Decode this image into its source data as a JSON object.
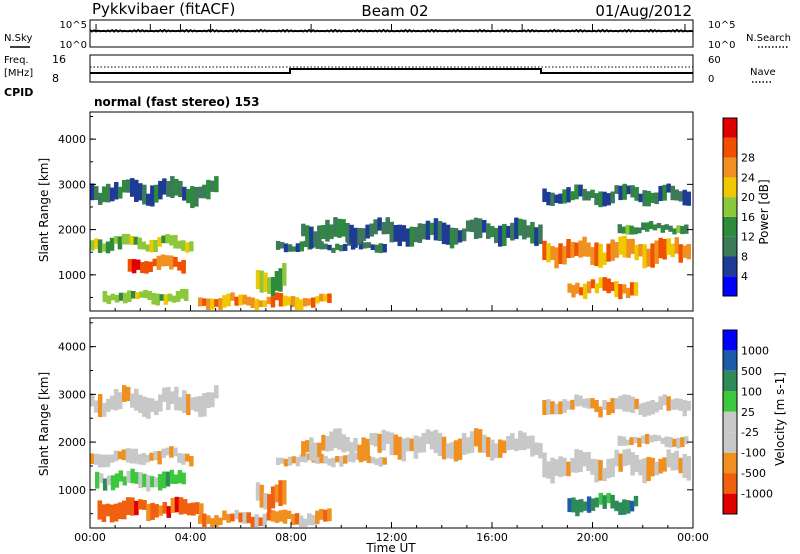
{
  "header": {
    "station": "Pykkvibaer (fitACF)",
    "beam": "Beam 02",
    "date": "01/Aug/2012"
  },
  "side_labels": {
    "nsky": "N.Sky",
    "nsearch": "N.Search",
    "freq": "Freq.",
    "freq_unit": "[MHz]",
    "nave": "Nave",
    "cpid": "CPID"
  },
  "noise_panel": {
    "left_ticks": [
      "10^5",
      "10^0"
    ],
    "right_ticks": [
      "10^5",
      "10^0"
    ]
  },
  "freq_panel": {
    "left_ticks": [
      "16",
      "8"
    ],
    "right_ticks": [
      "60",
      "0"
    ]
  },
  "cpid_text": "normal (fast stereo) 153",
  "colors": {
    "power": [
      "#0000ff",
      "#1e3c96",
      "#3c7a5a",
      "#2e8b3c",
      "#8cc83c",
      "#f0c800",
      "#f09020",
      "#f05000",
      "#e00000"
    ],
    "velocity": [
      "#e00000",
      "#f06010",
      "#f09020",
      "#c8c8c8",
      "#c8c8c8",
      "#3cc83c",
      "#2e8b57",
      "#1e5aaa",
      "#0000ff"
    ]
  },
  "chart_data": [
    {
      "type": "heatmap",
      "title": "Power",
      "ylabel": "Slant Range [km]",
      "xlabel": "",
      "yticks": [
        "1000",
        "2000",
        "3000",
        "4000"
      ],
      "ylim": [
        200,
        4600
      ],
      "xlim": [
        0,
        24
      ],
      "colorbar": {
        "label": "Power [dB]",
        "ticks": [
          "4",
          "8",
          "12",
          "16",
          "20",
          "24",
          "28"
        ]
      },
      "echo_bands": [
        {
          "t": [
            0,
            5.1
          ],
          "range": [
            2550,
            3100
          ],
          "level": 2
        },
        {
          "t": [
            0,
            4.1
          ],
          "range": [
            1500,
            1850
          ],
          "level": 4
        },
        {
          "t": [
            1.5,
            3.8
          ],
          "range": [
            1050,
            1400
          ],
          "level": 7
        },
        {
          "t": [
            0.5,
            3.9
          ],
          "range": [
            350,
            650
          ],
          "level": 4
        },
        {
          "t": [
            4.3,
            9.6
          ],
          "range": [
            230,
            560
          ],
          "level": 6
        },
        {
          "t": [
            6.6,
            7.8
          ],
          "range": [
            550,
            1200
          ],
          "level": 4
        },
        {
          "t": [
            7.4,
            11.8
          ],
          "range": [
            1500,
            1750
          ],
          "level": 2
        },
        {
          "t": [
            8.4,
            18.0
          ],
          "range": [
            1650,
            2200
          ],
          "level": 2
        },
        {
          "t": [
            18.0,
            23.9
          ],
          "range": [
            1200,
            1800
          ],
          "level": 6
        },
        {
          "t": [
            18.0,
            23.9
          ],
          "range": [
            2550,
            2950
          ],
          "level": 2
        },
        {
          "t": [
            19.0,
            21.8
          ],
          "range": [
            500,
            900
          ],
          "level": 6
        },
        {
          "t": [
            21.0,
            23.8
          ],
          "range": [
            1900,
            2150
          ],
          "level": 3
        }
      ]
    },
    {
      "type": "heatmap",
      "title": "Velocity",
      "ylabel": "Slant Range [km]",
      "xlabel": "Time UT",
      "xticks": [
        "00:00",
        "04:00",
        "08:00",
        "12:00",
        "16:00",
        "20:00",
        "00:00"
      ],
      "yticks": [
        "1000",
        "2000",
        "3000",
        "4000"
      ],
      "ylim": [
        200,
        4600
      ],
      "xlim": [
        0,
        24
      ],
      "colorbar": {
        "label": "Velocity [m s-1]",
        "ticks": [
          "1000",
          "500",
          "100",
          "25",
          "-25",
          "-100",
          "-500",
          "-1000"
        ]
      },
      "echo_bands": [
        {
          "t": [
            0,
            5.1
          ],
          "range": [
            2550,
            3100
          ],
          "level": 3
        },
        {
          "t": [
            0,
            4.1
          ],
          "range": [
            1500,
            1850
          ],
          "level": 3
        },
        {
          "t": [
            0.2,
            3.8
          ],
          "range": [
            1000,
            1400
          ],
          "level": 5
        },
        {
          "t": [
            0.3,
            4.5
          ],
          "range": [
            350,
            800
          ],
          "level": 1
        },
        {
          "t": [
            4.3,
            9.6
          ],
          "range": [
            230,
            560
          ],
          "level": 2
        },
        {
          "t": [
            6.6,
            7.8
          ],
          "range": [
            550,
            1200
          ],
          "level": 2
        },
        {
          "t": [
            7.4,
            11.8
          ],
          "range": [
            1500,
            1750
          ],
          "level": 3
        },
        {
          "t": [
            8.4,
            18.0
          ],
          "range": [
            1650,
            2200
          ],
          "level": 3
        },
        {
          "t": [
            18.0,
            23.9
          ],
          "range": [
            1200,
            1800
          ],
          "level": 3
        },
        {
          "t": [
            18.0,
            23.9
          ],
          "range": [
            2550,
            2950
          ],
          "level": 3
        },
        {
          "t": [
            19.0,
            21.8
          ],
          "range": [
            500,
            900
          ],
          "level": 6
        },
        {
          "t": [
            21.0,
            23.8
          ],
          "range": [
            1900,
            2150
          ],
          "level": 3
        }
      ]
    }
  ]
}
